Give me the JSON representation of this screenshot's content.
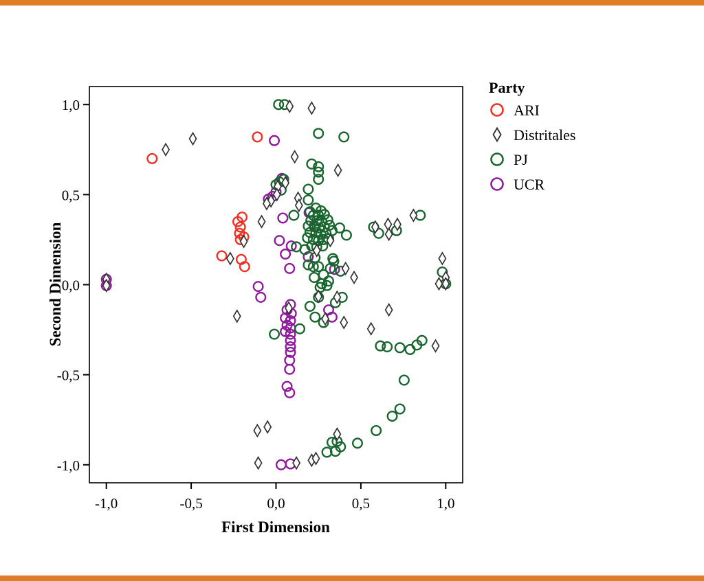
{
  "page": {
    "accent_color": "#DF7E27",
    "background": "#ffffff"
  },
  "chart_data": {
    "type": "scatter",
    "xlabel": "First Dimension",
    "ylabel": "Second Dimension",
    "legend_title": "Party",
    "xlim": [
      -1.1,
      1.1
    ],
    "ylim": [
      -1.1,
      1.1
    ],
    "grid": false,
    "legend_position": "right-top",
    "x_ticks": {
      "values": [
        -1.0,
        -0.5,
        0.0,
        0.5,
        1.0
      ],
      "labels": [
        "-1,0",
        "-0,5",
        "0,0",
        "0,5",
        "1,0"
      ]
    },
    "y_ticks": {
      "values": [
        1.0,
        0.5,
        0.0,
        -0.5,
        -1.0
      ],
      "labels": [
        "1,0",
        "0,5",
        "0,0",
        "-0,5",
        "-1,0"
      ]
    },
    "draw_order": [
      "ARI",
      "UCR",
      "PJ",
      "Distritales"
    ],
    "series": [
      {
        "name": "ARI",
        "marker": "circle",
        "color": "#EE3124",
        "points": [
          [
            -0.73,
            0.7
          ],
          [
            -0.11,
            0.82
          ],
          [
            -0.2,
            0.375
          ],
          [
            -0.225,
            0.35
          ],
          [
            -0.21,
            0.32
          ],
          [
            -0.215,
            0.285
          ],
          [
            -0.19,
            0.265
          ],
          [
            -0.21,
            0.25
          ],
          [
            -0.32,
            0.16
          ],
          [
            -0.205,
            0.14
          ],
          [
            -0.185,
            0.1
          ]
        ]
      },
      {
        "name": "Distritales",
        "marker": "diamond",
        "color": "#333333",
        "points": [
          [
            -1.0,
            0.03
          ],
          [
            -1.0,
            -0.005
          ],
          [
            -0.49,
            0.81
          ],
          [
            -0.65,
            0.75
          ],
          [
            0.08,
            0.99
          ],
          [
            0.21,
            0.98
          ],
          [
            0.11,
            0.71
          ],
          [
            0.365,
            0.635
          ],
          [
            0.01,
            0.545
          ],
          [
            0.055,
            0.565
          ],
          [
            -0.03,
            0.465
          ],
          [
            -0.055,
            0.45
          ],
          [
            0.005,
            0.5
          ],
          [
            0.13,
            0.48
          ],
          [
            0.135,
            0.44
          ],
          [
            -0.085,
            0.35
          ],
          [
            -0.19,
            0.24
          ],
          [
            -0.27,
            0.145
          ],
          [
            0.24,
            0.19
          ],
          [
            0.32,
            0.245
          ],
          [
            0.41,
            0.09
          ],
          [
            0.46,
            0.04
          ],
          [
            0.585,
            0.32
          ],
          [
            0.66,
            0.335
          ],
          [
            0.665,
            0.28
          ],
          [
            0.715,
            0.335
          ],
          [
            0.81,
            0.385
          ],
          [
            0.98,
            0.145
          ],
          [
            1.0,
            0.04
          ],
          [
            0.96,
            0.005
          ],
          [
            1.0,
            0.005
          ],
          [
            0.25,
            -0.065
          ],
          [
            0.36,
            -0.07
          ],
          [
            0.075,
            -0.13
          ],
          [
            0.29,
            -0.19
          ],
          [
            0.4,
            -0.21
          ],
          [
            0.56,
            -0.245
          ],
          [
            0.665,
            -0.14
          ],
          [
            -0.23,
            -0.175
          ],
          [
            0.94,
            -0.34
          ],
          [
            0.36,
            -0.83
          ],
          [
            -0.11,
            -0.81
          ],
          [
            -0.05,
            -0.79
          ],
          [
            -0.105,
            -0.99
          ],
          [
            0.12,
            -0.99
          ],
          [
            0.21,
            -0.975
          ],
          [
            0.235,
            -0.965
          ]
        ]
      },
      {
        "name": "PJ",
        "marker": "circle",
        "color": "#19662F",
        "points": [
          [
            0.015,
            1.0
          ],
          [
            0.05,
            1.0
          ],
          [
            0.25,
            0.84
          ],
          [
            0.4,
            0.82
          ],
          [
            0.21,
            0.67
          ],
          [
            0.25,
            0.655
          ],
          [
            0.25,
            0.625
          ],
          [
            0.25,
            0.585
          ],
          [
            0.0,
            0.555
          ],
          [
            0.02,
            0.57
          ],
          [
            0.045,
            0.585
          ],
          [
            0.03,
            0.525
          ],
          [
            0.19,
            0.53
          ],
          [
            0.19,
            0.47
          ],
          [
            0.105,
            0.385
          ],
          [
            0.375,
            0.315
          ],
          [
            0.415,
            0.275
          ],
          [
            0.575,
            0.32
          ],
          [
            0.605,
            0.285
          ],
          [
            0.71,
            0.3
          ],
          [
            0.85,
            0.385
          ],
          [
            0.98,
            0.07
          ],
          [
            1.0,
            0.005
          ],
          [
            0.2,
            0.405
          ],
          [
            0.235,
            0.425
          ],
          [
            0.265,
            0.41
          ],
          [
            0.22,
            0.385
          ],
          [
            0.25,
            0.385
          ],
          [
            0.285,
            0.39
          ],
          [
            0.205,
            0.355
          ],
          [
            0.24,
            0.355
          ],
          [
            0.27,
            0.35
          ],
          [
            0.305,
            0.36
          ],
          [
            0.19,
            0.325
          ],
          [
            0.225,
            0.325
          ],
          [
            0.255,
            0.315
          ],
          [
            0.285,
            0.32
          ],
          [
            0.315,
            0.33
          ],
          [
            0.2,
            0.29
          ],
          [
            0.235,
            0.29
          ],
          [
            0.265,
            0.28
          ],
          [
            0.295,
            0.285
          ],
          [
            0.33,
            0.3
          ],
          [
            0.22,
            0.25
          ],
          [
            0.25,
            0.245
          ],
          [
            0.28,
            0.25
          ],
          [
            0.185,
            0.26
          ],
          [
            0.31,
            0.255
          ],
          [
            0.24,
            0.21
          ],
          [
            0.275,
            0.215
          ],
          [
            0.21,
            0.215
          ],
          [
            0.12,
            0.21
          ],
          [
            0.17,
            0.195
          ],
          [
            0.23,
            0.15
          ],
          [
            0.19,
            0.11
          ],
          [
            0.335,
            0.145
          ],
          [
            0.34,
            0.13
          ],
          [
            0.32,
            0.09
          ],
          [
            0.38,
            0.075
          ],
          [
            0.22,
            0.1
          ],
          [
            0.25,
            0.1
          ],
          [
            0.28,
            0.055
          ],
          [
            0.225,
            0.04
          ],
          [
            0.31,
            0.02
          ],
          [
            0.27,
            0.005
          ],
          [
            0.3,
            -0.005
          ],
          [
            0.26,
            -0.015
          ],
          [
            0.25,
            -0.07
          ],
          [
            0.35,
            -0.1
          ],
          [
            0.39,
            -0.07
          ],
          [
            0.2,
            -0.12
          ],
          [
            0.23,
            -0.18
          ],
          [
            0.28,
            -0.21
          ],
          [
            0.14,
            -0.245
          ],
          [
            -0.01,
            -0.275
          ],
          [
            0.615,
            -0.34
          ],
          [
            0.655,
            -0.345
          ],
          [
            0.73,
            -0.35
          ],
          [
            0.79,
            -0.36
          ],
          [
            0.83,
            -0.335
          ],
          [
            0.86,
            -0.31
          ],
          [
            0.755,
            -0.53
          ],
          [
            0.685,
            -0.73
          ],
          [
            0.73,
            -0.69
          ],
          [
            0.59,
            -0.81
          ],
          [
            0.48,
            -0.88
          ],
          [
            0.33,
            -0.875
          ],
          [
            0.36,
            -0.87
          ],
          [
            0.38,
            -0.9
          ],
          [
            0.35,
            -0.925
          ],
          [
            0.3,
            -0.93
          ]
        ]
      },
      {
        "name": "UCR",
        "marker": "circle",
        "color": "#8F1A9B",
        "points": [
          [
            -1.0,
            0.03
          ],
          [
            -1.0,
            -0.005
          ],
          [
            -0.01,
            0.8
          ],
          [
            0.035,
            0.59
          ],
          [
            -0.045,
            0.475
          ],
          [
            -0.02,
            0.49
          ],
          [
            0.0,
            0.515
          ],
          [
            0.04,
            0.37
          ],
          [
            0.195,
            0.4
          ],
          [
            0.23,
            0.32
          ],
          [
            0.02,
            0.245
          ],
          [
            0.09,
            0.215
          ],
          [
            0.055,
            0.17
          ],
          [
            0.19,
            0.155
          ],
          [
            0.08,
            0.09
          ],
          [
            0.345,
            0.085
          ],
          [
            -0.105,
            -0.01
          ],
          [
            -0.09,
            -0.07
          ],
          [
            0.085,
            -0.11
          ],
          [
            0.065,
            -0.14
          ],
          [
            0.09,
            -0.16
          ],
          [
            0.055,
            -0.185
          ],
          [
            0.085,
            -0.2
          ],
          [
            0.065,
            -0.225
          ],
          [
            0.085,
            -0.24
          ],
          [
            0.055,
            -0.26
          ],
          [
            0.085,
            -0.275
          ],
          [
            0.085,
            -0.31
          ],
          [
            0.085,
            -0.345
          ],
          [
            0.085,
            -0.375
          ],
          [
            0.08,
            -0.42
          ],
          [
            0.08,
            -0.47
          ],
          [
            0.065,
            -0.565
          ],
          [
            0.08,
            -0.6
          ],
          [
            0.31,
            -0.14
          ],
          [
            0.33,
            -0.18
          ],
          [
            0.03,
            -1.0
          ],
          [
            0.085,
            -0.995
          ]
        ]
      }
    ]
  }
}
